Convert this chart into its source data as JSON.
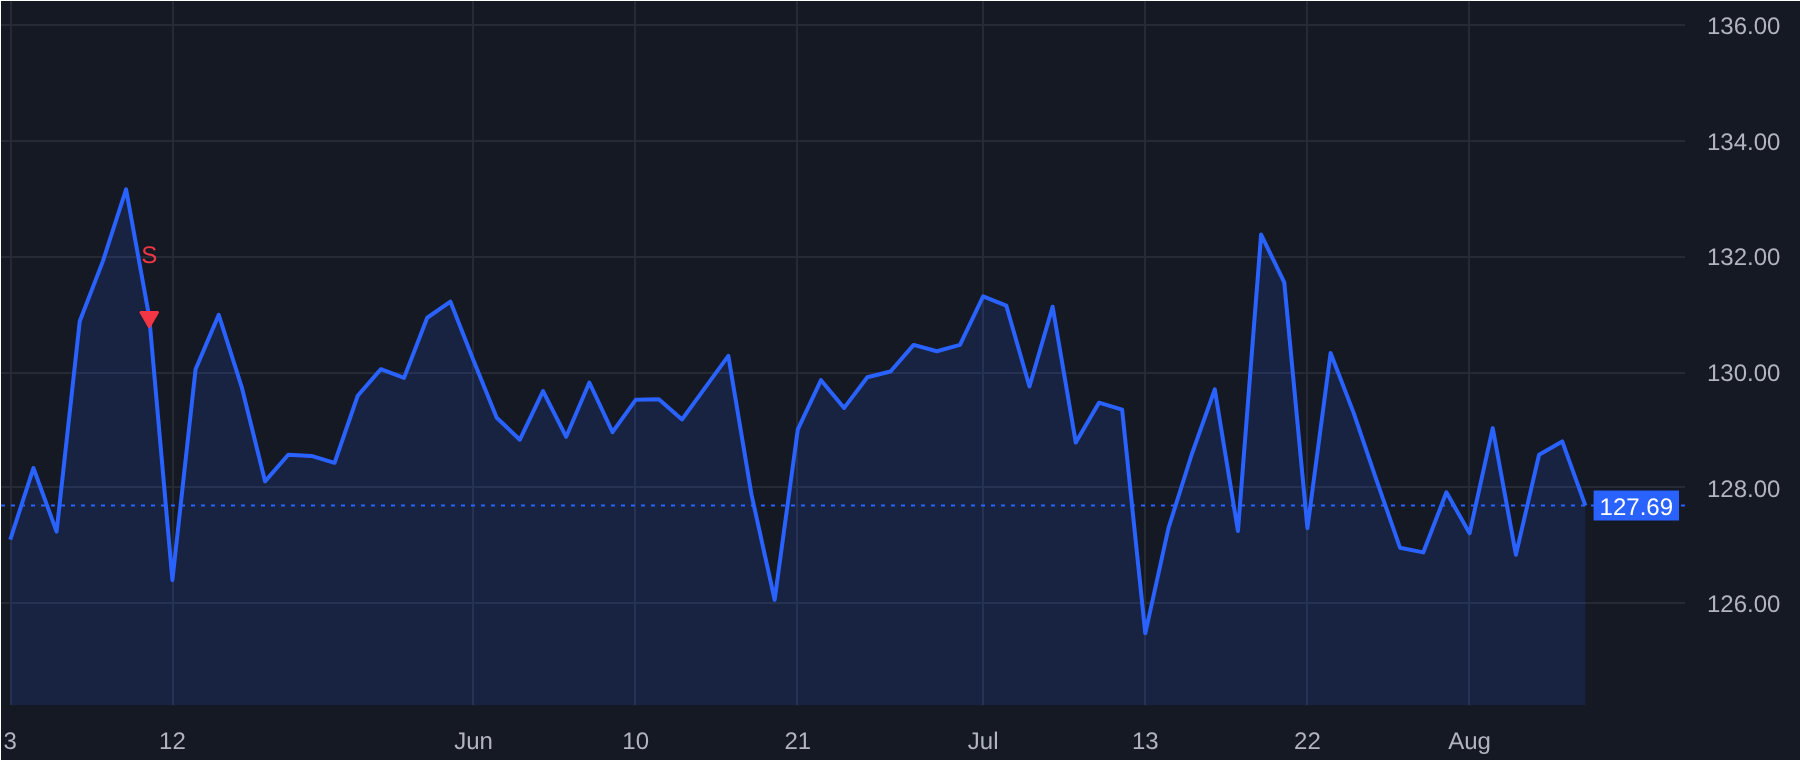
{
  "chart_data": {
    "type": "area",
    "categories": [
      "3",
      null,
      null,
      null,
      null,
      null,
      null,
      "12",
      null,
      null,
      null,
      null,
      null,
      null,
      null,
      null,
      null,
      null,
      null,
      null,
      "Jun",
      null,
      null,
      null,
      null,
      null,
      null,
      "10",
      null,
      null,
      null,
      null,
      null,
      null,
      "21",
      null,
      null,
      null,
      null,
      null,
      null,
      null,
      "Jul",
      null,
      null,
      null,
      null,
      null,
      null,
      "13",
      null,
      null,
      null,
      null,
      null,
      null,
      "22",
      null,
      null,
      null,
      null,
      null,
      null,
      "Aug",
      null,
      null,
      null,
      null,
      null
    ],
    "series": [
      {
        "color": "#2962ff",
        "values": [
          127.1,
          128.34,
          127.24,
          130.88,
          131.92,
          133.16,
          130.95,
          126.4,
          130.05,
          130.99,
          129.73,
          128.11,
          128.57,
          128.55,
          128.43,
          129.59,
          130.05,
          129.9,
          130.94,
          131.22,
          130.2,
          129.21,
          128.83,
          129.67,
          128.88,
          129.82,
          128.96,
          129.52,
          129.53,
          129.18,
          129.73,
          130.28,
          127.88,
          126.06,
          129.01,
          129.86,
          129.38,
          129.91,
          130.01,
          130.47,
          130.36,
          130.47,
          131.31,
          131.15,
          129.75,
          131.13,
          128.78,
          129.47,
          129.35,
          125.48,
          127.3,
          128.57,
          129.7,
          127.25,
          132.38,
          131.55,
          127.3,
          130.33,
          129.29,
          128.11,
          126.96,
          126.88,
          127.92,
          127.21,
          129.03,
          126.84,
          128.57,
          128.8,
          127.69
        ]
      }
    ],
    "ylim": [
      124.24,
      136.42
    ],
    "yticks": [
      {
        "value": 126,
        "label": "126.00"
      },
      {
        "value": 128,
        "label": "128.00"
      },
      {
        "value": 130,
        "label": "130.00"
      },
      {
        "value": 132,
        "label": "132.00"
      },
      {
        "value": 134,
        "label": "134.00"
      },
      {
        "value": 136,
        "label": "136.00"
      }
    ],
    "ref_lines": [
      {
        "axis": "y",
        "value": 127.69,
        "label": "127.69",
        "color": "#2962ff",
        "line_style": "dotted"
      }
    ],
    "annotations": [
      {
        "text": "S",
        "y": 130.95
      }
    ],
    "grid": true
  }
}
